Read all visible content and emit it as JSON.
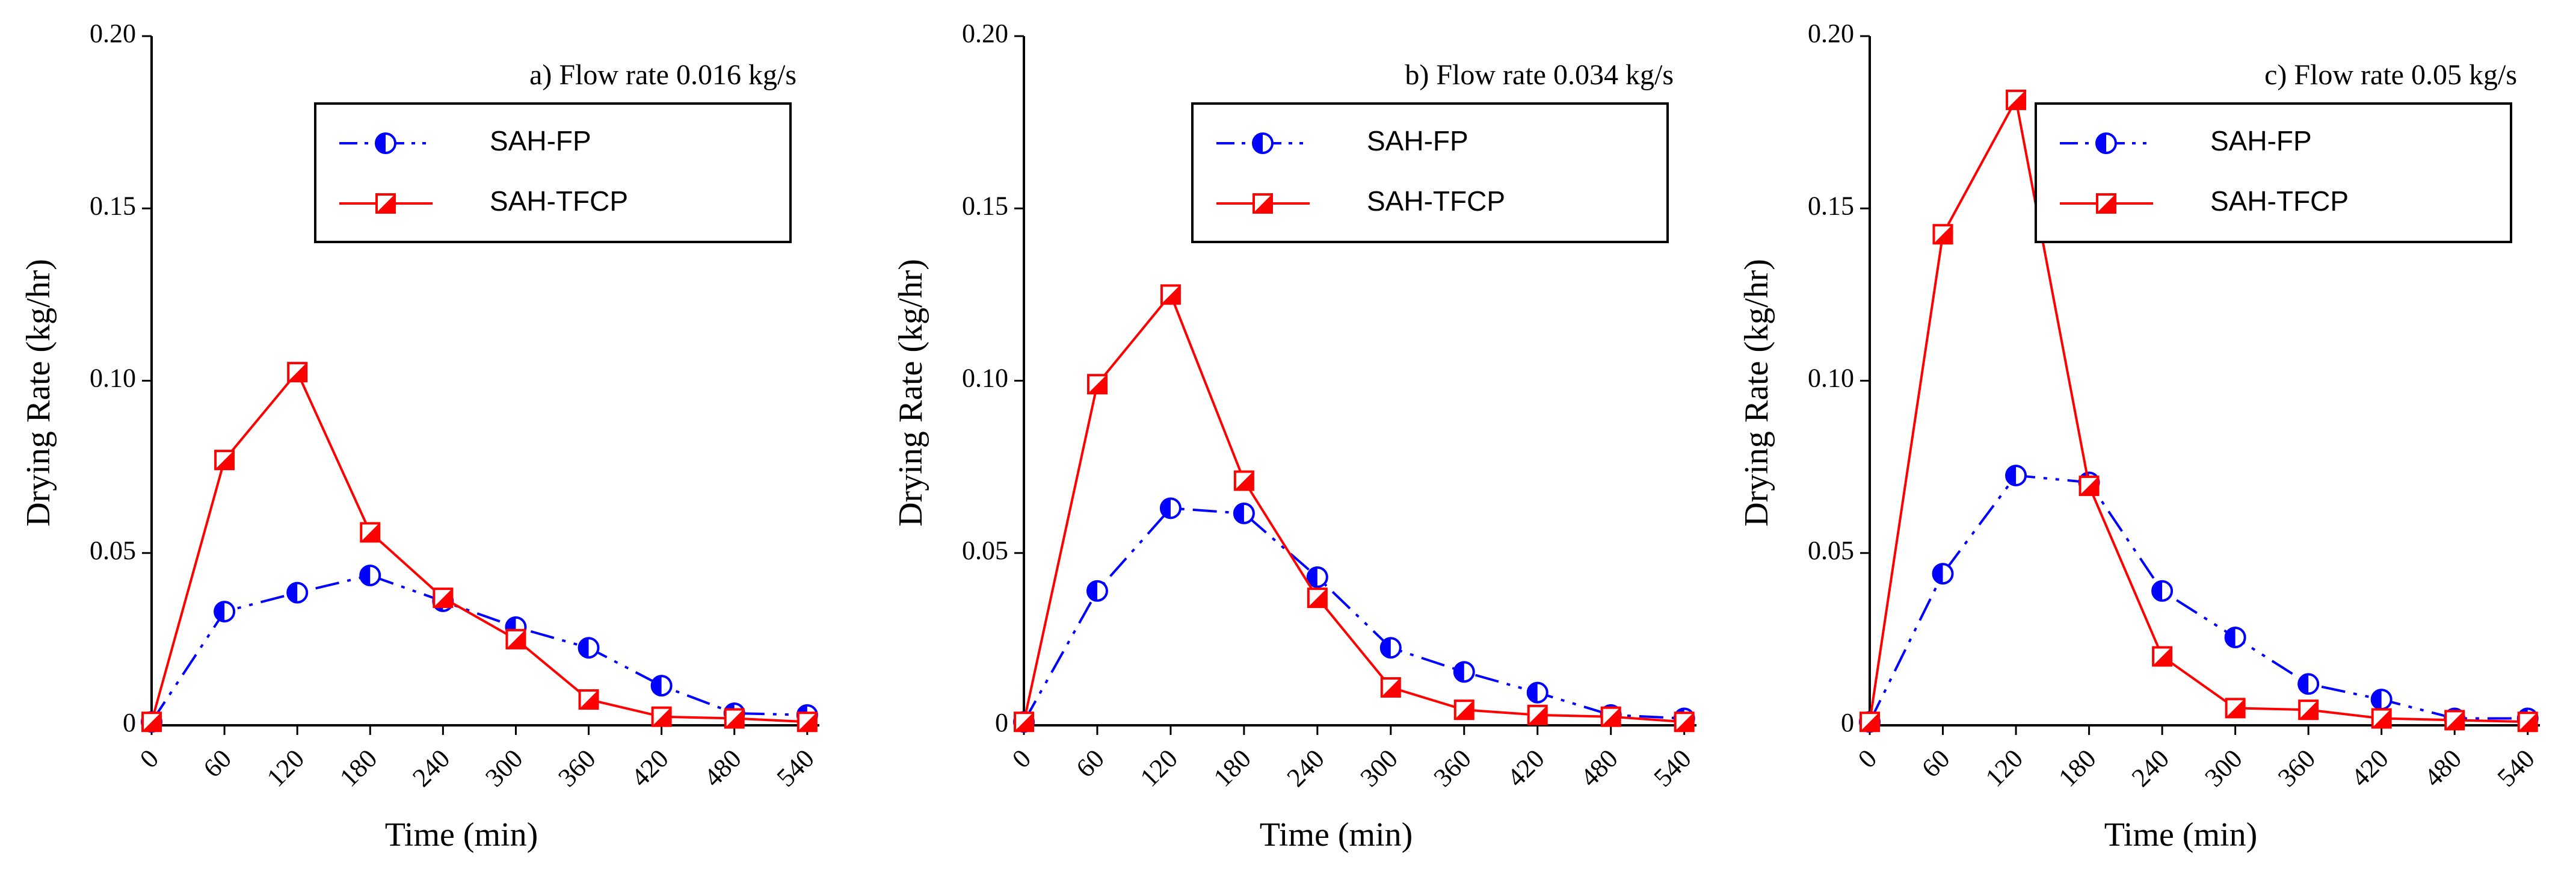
{
  "colors": {
    "fp": "#0000ff",
    "tfcp": "#ff0000",
    "axis": "#000000"
  },
  "chart_data": [
    {
      "type": "line",
      "title": "a) Flow rate 0.016 kg/s",
      "xlabel": "Time (min)",
      "ylabel": "Drying Rate (kg/hr)",
      "x": [
        0,
        60,
        120,
        180,
        240,
        300,
        360,
        420,
        480,
        540
      ],
      "xticks": [
        "0",
        "60",
        "120",
        "180",
        "240",
        "300",
        "360",
        "420",
        "480",
        "540"
      ],
      "xlim": [
        0,
        550
      ],
      "ylim": [
        0,
        0.2
      ],
      "yticks": [
        0,
        0.05,
        0.1,
        0.15,
        0.2
      ],
      "ytick_labels": [
        "0",
        "0.05",
        "0.10",
        "0.15",
        "0.20"
      ],
      "legend_position": "top-right",
      "series": [
        {
          "name": "SAH-FP",
          "values": [
            0.001,
            0.033,
            0.0385,
            0.0435,
            0.036,
            0.0285,
            0.0225,
            0.0115,
            0.0035,
            0.003
          ]
        },
        {
          "name": "SAH-TFCP",
          "values": [
            0.001,
            0.077,
            0.1025,
            0.056,
            0.037,
            0.025,
            0.0075,
            0.0025,
            0.002,
            0.001
          ]
        }
      ]
    },
    {
      "type": "line",
      "title": "b) Flow rate 0.034 kg/s",
      "xlabel": "Time (min)",
      "ylabel": "Drying Rate (kg/hr)",
      "x": [
        0,
        60,
        120,
        180,
        240,
        300,
        360,
        420,
        480,
        540
      ],
      "xticks": [
        "0",
        "60",
        "120",
        "180",
        "240",
        "300",
        "360",
        "420",
        "480",
        "540"
      ],
      "xlim": [
        0,
        550
      ],
      "ylim": [
        0,
        0.2
      ],
      "yticks": [
        0,
        0.05,
        0.1,
        0.15,
        0.2
      ],
      "ytick_labels": [
        "0",
        "0.05",
        "0.10",
        "0.15",
        "0.20"
      ],
      "legend_position": "top-right",
      "series": [
        {
          "name": "SAH-FP",
          "values": [
            0.001,
            0.039,
            0.063,
            0.0615,
            0.043,
            0.0225,
            0.0155,
            0.0095,
            0.003,
            0.002
          ]
        },
        {
          "name": "SAH-TFCP",
          "values": [
            0.001,
            0.099,
            0.125,
            0.071,
            0.037,
            0.011,
            0.0045,
            0.003,
            0.0025,
            0.001
          ]
        }
      ]
    },
    {
      "type": "line",
      "title": "c) Flow rate 0.05 kg/s",
      "xlabel": "Time (min)",
      "ylabel": "Drying Rate (kg/hr)",
      "x": [
        0,
        60,
        120,
        180,
        240,
        300,
        360,
        420,
        480,
        540
      ],
      "xticks": [
        "0",
        "60",
        "120",
        "180",
        "240",
        "300",
        "360",
        "420",
        "480",
        "540"
      ],
      "xlim": [
        0,
        550
      ],
      "ylim": [
        0,
        0.2
      ],
      "yticks": [
        0,
        0.05,
        0.1,
        0.15,
        0.2
      ],
      "ytick_labels": [
        "0",
        "0.05",
        "0.10",
        "0.15",
        "0.20"
      ],
      "legend_position": "top-right",
      "series": [
        {
          "name": "SAH-FP",
          "values": [
            0.001,
            0.044,
            0.0725,
            0.0705,
            0.039,
            0.0255,
            0.012,
            0.0075,
            0.002,
            0.002
          ]
        },
        {
          "name": "SAH-TFCP",
          "values": [
            0.001,
            0.1425,
            0.1815,
            0.0695,
            0.02,
            0.005,
            0.0045,
            0.002,
            0.0015,
            0.001
          ]
        }
      ]
    }
  ]
}
